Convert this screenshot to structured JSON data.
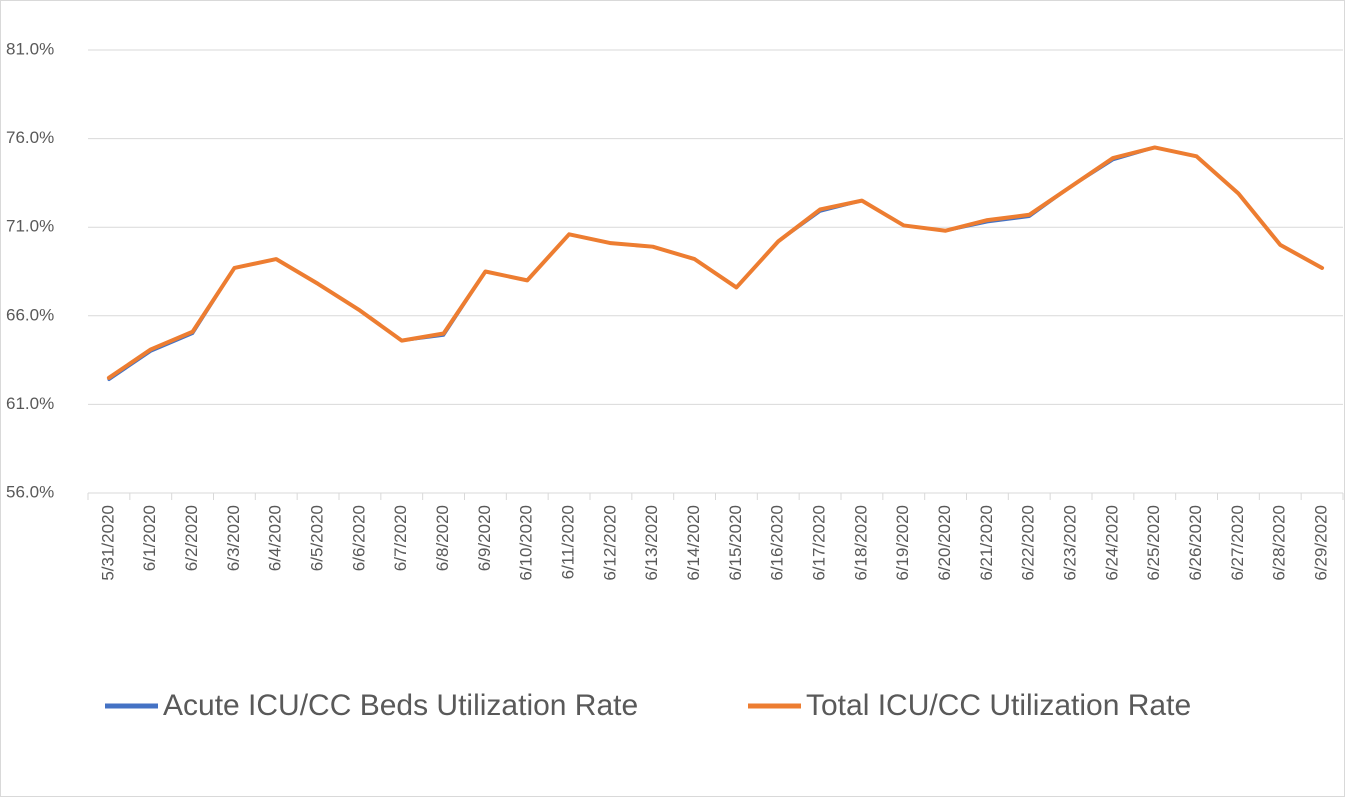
{
  "chart_data": {
    "type": "line",
    "categories": [
      "5/31/2020",
      "6/1/2020",
      "6/2/2020",
      "6/3/2020",
      "6/4/2020",
      "6/5/2020",
      "6/6/2020",
      "6/7/2020",
      "6/8/2020",
      "6/9/2020",
      "6/10/2020",
      "6/11/2020",
      "6/12/2020",
      "6/13/2020",
      "6/14/2020",
      "6/15/2020",
      "6/16/2020",
      "6/17/2020",
      "6/18/2020",
      "6/19/2020",
      "6/20/2020",
      "6/21/2020",
      "6/22/2020",
      "6/23/2020",
      "6/24/2020",
      "6/25/2020",
      "6/26/2020",
      "6/27/2020",
      "6/28/2020",
      "6/29/2020"
    ],
    "series": [
      {
        "name": "Acute ICU/CC Beds Utilization Rate",
        "color": "#4472c4",
        "values": [
          62.4,
          64.0,
          65.0,
          68.7,
          69.2,
          67.8,
          66.3,
          64.6,
          64.9,
          68.5,
          68.0,
          70.6,
          70.1,
          69.9,
          69.2,
          67.6,
          70.2,
          71.9,
          72.5,
          71.1,
          70.8,
          71.3,
          71.6,
          73.3,
          74.8,
          75.5,
          75.0,
          72.9,
          70.0,
          68.7
        ]
      },
      {
        "name": "Total ICU/CC Utilization Rate",
        "color": "#ed7d31",
        "values": [
          62.5,
          64.1,
          65.1,
          68.7,
          69.2,
          67.8,
          66.3,
          64.6,
          65.0,
          68.5,
          68.0,
          70.6,
          70.1,
          69.9,
          69.2,
          67.6,
          70.2,
          72.0,
          72.5,
          71.1,
          70.8,
          71.4,
          71.7,
          73.3,
          74.9,
          75.5,
          75.0,
          72.9,
          70.0,
          68.7
        ]
      }
    ],
    "ylim": [
      56,
      81
    ],
    "yticks": [
      {
        "value": 56,
        "label": "56.0%"
      },
      {
        "value": 61,
        "label": "61.0%"
      },
      {
        "value": 66,
        "label": "66.0%"
      },
      {
        "value": 71,
        "label": "71.0%"
      },
      {
        "value": 76,
        "label": "76.0%"
      },
      {
        "value": 81,
        "label": "81.0%"
      }
    ],
    "grid": true,
    "legend": "bottom"
  }
}
